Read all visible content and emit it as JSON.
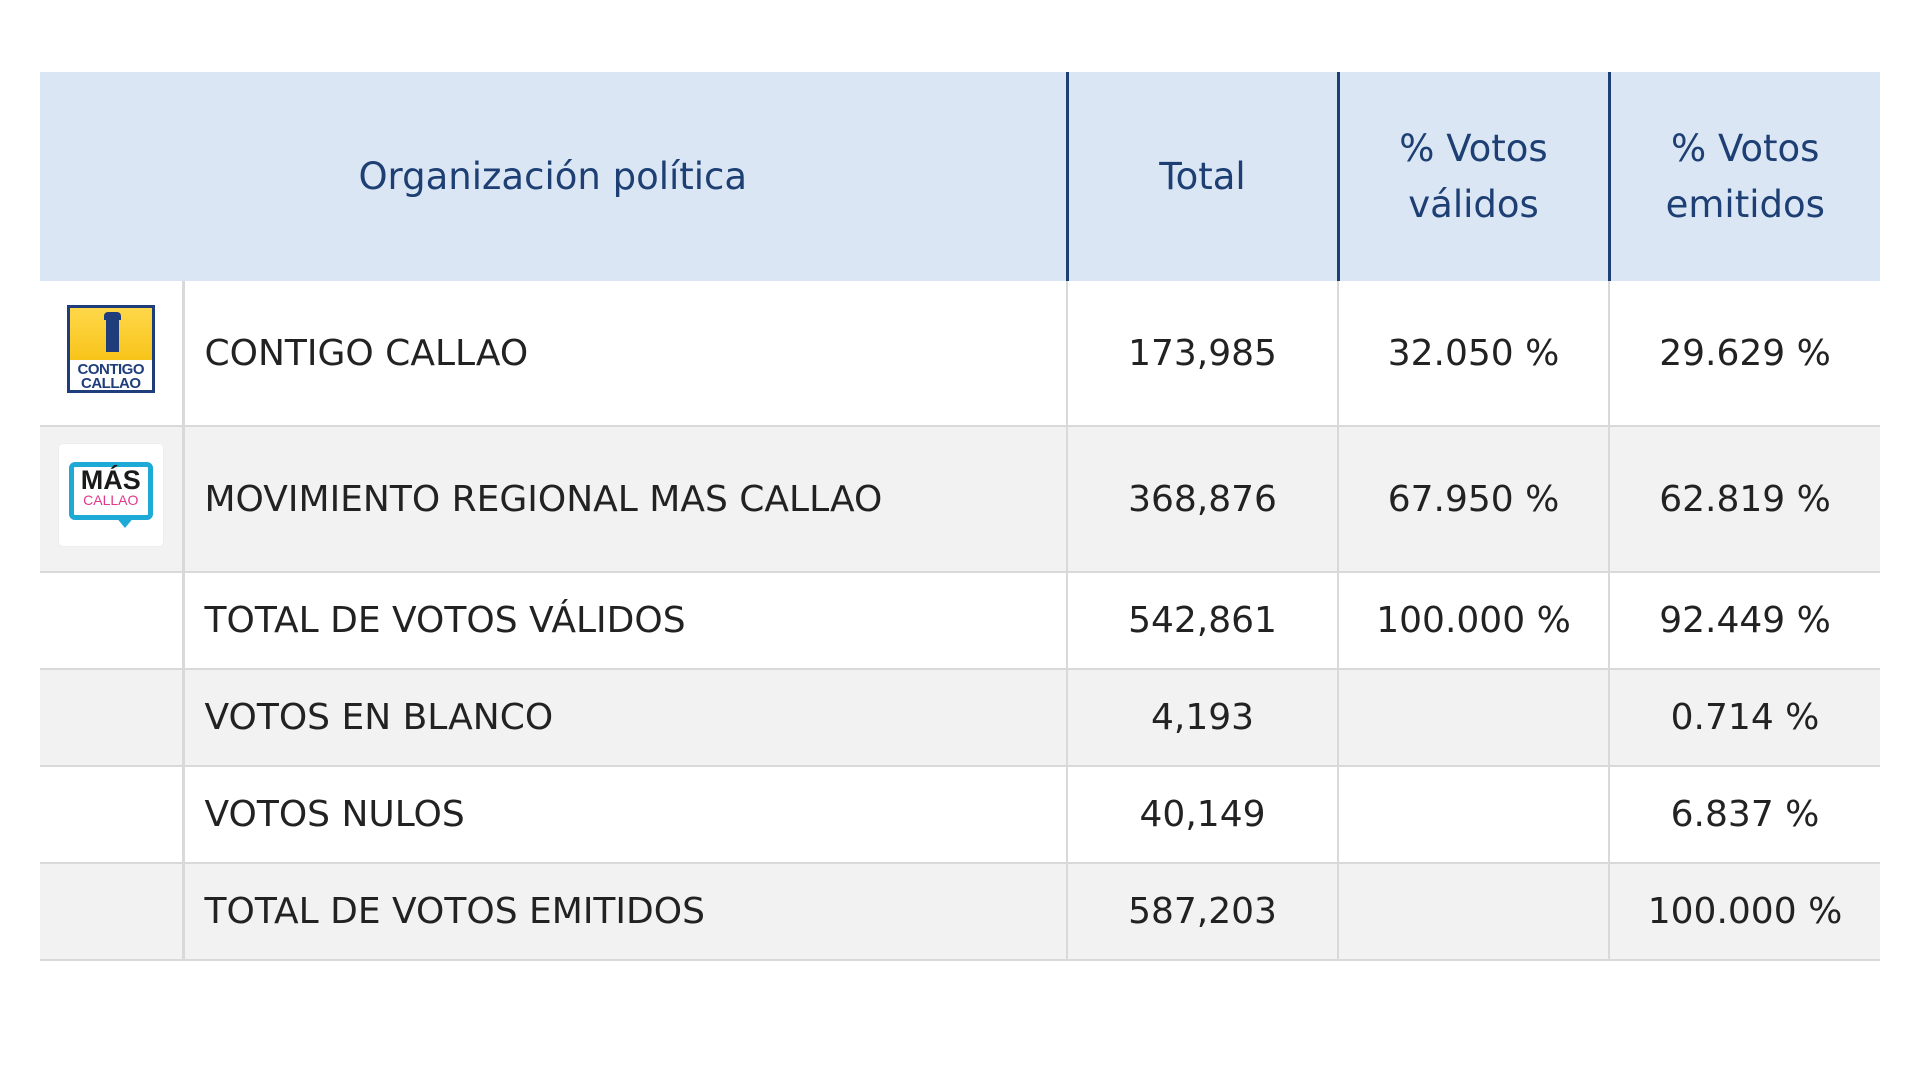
{
  "table": {
    "headers": {
      "org": "Organización política",
      "total": "Total",
      "valid_line1": "% Votos",
      "valid_line2": "válidos",
      "emit_line1": "% Votos",
      "emit_line2": "emitidos"
    },
    "rows": [
      {
        "logo": "contigo-callao-logo",
        "logo_text": [
          "CONTIGO",
          "CALLAO"
        ],
        "name": "CONTIGO CALLAO",
        "total": "173,985",
        "valid_pct": "32.050 %",
        "emit_pct": "29.629 %"
      },
      {
        "logo": "mas-callao-logo",
        "logo_text": [
          "MÁS",
          "CALLAO"
        ],
        "name": "MOVIMIENTO REGIONAL MAS CALLAO",
        "total": "368,876",
        "valid_pct": "67.950 %",
        "emit_pct": "62.819 %"
      },
      {
        "name": "TOTAL DE VOTOS VÁLIDOS",
        "total": "542,861",
        "valid_pct": "100.000 %",
        "emit_pct": "92.449 %"
      },
      {
        "name": "VOTOS EN BLANCO",
        "total": "4,193",
        "valid_pct": "",
        "emit_pct": "0.714 %"
      },
      {
        "name": "VOTOS NULOS",
        "total": "40,149",
        "valid_pct": "",
        "emit_pct": "6.837 %"
      },
      {
        "name": "TOTAL DE VOTOS EMITIDOS",
        "total": "587,203",
        "valid_pct": "",
        "emit_pct": "100.000 %"
      }
    ]
  },
  "colors": {
    "header_bg": "#dbe6f4",
    "header_text": "#1d3f73",
    "alt_row_bg": "#f2f2f2",
    "grid": "#d9d9d9"
  }
}
